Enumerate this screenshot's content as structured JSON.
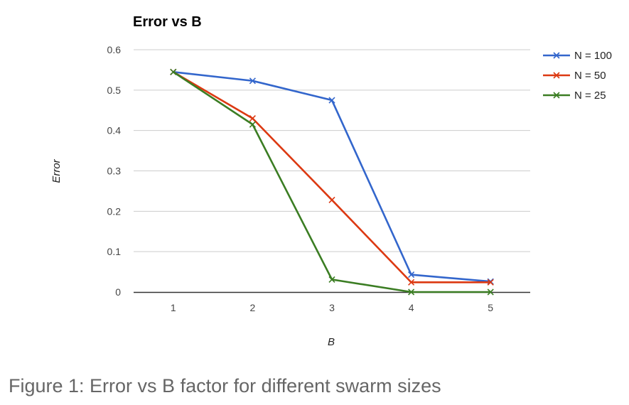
{
  "chart_data": {
    "type": "line",
    "title": "Error vs B",
    "xlabel": "B",
    "ylabel": "Error",
    "x": [
      1,
      2,
      3,
      4,
      5
    ],
    "xlim": [
      0.5,
      5.5
    ],
    "ylim": [
      0,
      0.6
    ],
    "yticks": [
      "0",
      "0.1",
      "0.2",
      "0.3",
      "0.4",
      "0.5",
      "0.6"
    ],
    "xticks": [
      "1",
      "2",
      "3",
      "4",
      "5"
    ],
    "grid": true,
    "legend_position": "top-right",
    "marker": "x",
    "series": [
      {
        "name": "N = 100",
        "color": "#3366cc",
        "values": [
          0.545,
          0.523,
          0.475,
          0.043,
          0.026
        ]
      },
      {
        "name": "N = 50",
        "color": "#dc3912",
        "values": [
          0.545,
          0.43,
          0.228,
          0.024,
          0.024
        ]
      },
      {
        "name": "N = 25",
        "color": "#3b7d23",
        "values": [
          0.545,
          0.415,
          0.031,
          0.0,
          0.0
        ]
      }
    ]
  },
  "caption": "Figure 1: Error vs B factor for different swarm sizes"
}
